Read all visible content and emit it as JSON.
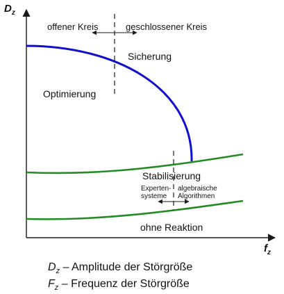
{
  "axes": {
    "y_label": "D",
    "y_label_sub": "z",
    "x_label": "f",
    "x_label_sub": "z"
  },
  "regions": {
    "offener_kreis": "offener Kreis",
    "geschlossener_kreis": "geschlossener Kreis",
    "sicherung": "Sicherung",
    "optimierung": "Optimierung",
    "stabilisierung": "Stabilisierung",
    "expertensysteme_line1": "Experten-",
    "expertensysteme_line2": "systeme",
    "algebraische_line1": "algebraische",
    "algebraische_line2": "Algorithmen",
    "ohne_reaktion": "ohne Reaktion"
  },
  "legend": {
    "dz_symbol": "D",
    "dz_sub": "z",
    "dz_text": " – Amplitude der Störgröße",
    "fz_symbol": "F",
    "fz_sub": "z",
    "fz_text": " – Frequenz der Störgröße"
  },
  "colors": {
    "boundary_curve": "#1010cc",
    "green_curves": "#228b22",
    "axis": "#1a1a1a"
  }
}
